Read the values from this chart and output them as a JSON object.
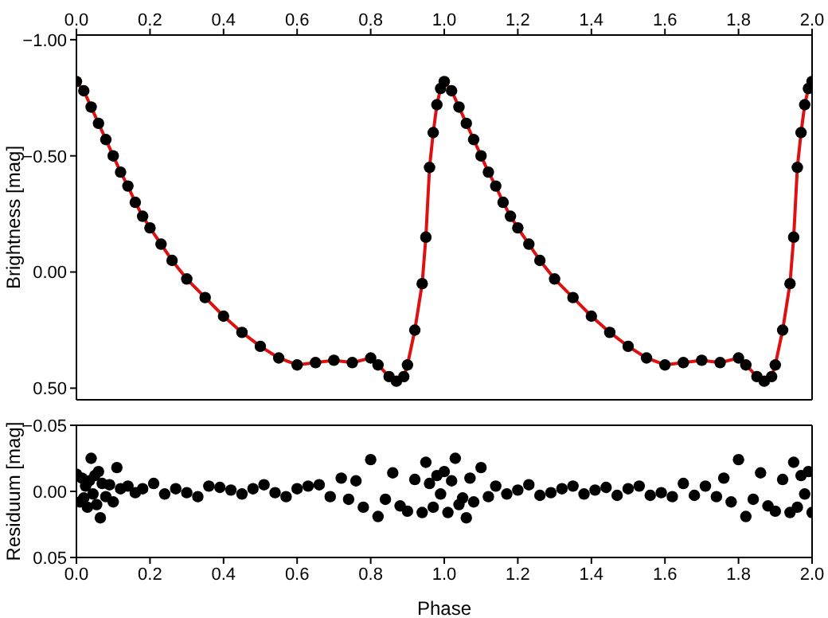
{
  "chart_data": [
    {
      "type": "scatter",
      "ylabel": "Brightness [mag]",
      "xlim": [
        0,
        2
      ],
      "xticks": [
        {
          "value": 0,
          "label": "0.0"
        },
        {
          "value": 0.2,
          "label": "0.2"
        },
        {
          "value": 0.4,
          "label": "0.4"
        },
        {
          "value": 0.6,
          "label": "0.6"
        },
        {
          "value": 0.8,
          "label": "0.8"
        },
        {
          "value": 1,
          "label": "1.0"
        },
        {
          "value": 1.2,
          "label": "1.2"
        },
        {
          "value": 1.4,
          "label": "1.4"
        },
        {
          "value": 1.6,
          "label": "1.6"
        },
        {
          "value": 1.8,
          "label": "1.8"
        },
        {
          "value": 2,
          "label": "2.0"
        }
      ],
      "ylim": [
        0.55,
        -1.02
      ],
      "yticks": [
        {
          "value": -1,
          "label": "−1.00"
        },
        {
          "value": -0.5,
          "label": "−0.50"
        },
        {
          "value": 0,
          "label": "0.00"
        },
        {
          "value": 0.5,
          "label": "0.50"
        }
      ],
      "grid": false,
      "series": [
        {
          "type": "scatter",
          "marker": "circle",
          "color": "#000000",
          "x": [
            0,
            0.02,
            0.04,
            0.06,
            0.08,
            0.1,
            0.12,
            0.14,
            0.16,
            0.18,
            0.2,
            0.23,
            0.26,
            0.3,
            0.35,
            0.4,
            0.45,
            0.5,
            0.55,
            0.6,
            0.65,
            0.7,
            0.75,
            0.8,
            0.82,
            0.85,
            0.87,
            0.89,
            0.9,
            0.92,
            0.94,
            0.95,
            0.96,
            0.97,
            0.98,
            0.99,
            1,
            1.02,
            1.04,
            1.06,
            1.08,
            1.1,
            1.12,
            1.14,
            1.16,
            1.18,
            1.2,
            1.23,
            1.26,
            1.3,
            1.35,
            1.4,
            1.45,
            1.5,
            1.55,
            1.6,
            1.65,
            1.7,
            1.75,
            1.8,
            1.82,
            1.85,
            1.87,
            1.89,
            1.9,
            1.92,
            1.94,
            1.95,
            1.96,
            1.97,
            1.98,
            1.99,
            2
          ],
          "values": [
            -0.82,
            -0.78,
            -0.71,
            -0.64,
            -0.57,
            -0.5,
            -0.43,
            -0.37,
            -0.3,
            -0.24,
            -0.19,
            -0.12,
            -0.05,
            0.03,
            0.11,
            0.19,
            0.26,
            0.32,
            0.37,
            0.4,
            0.39,
            0.38,
            0.39,
            0.37,
            0.4,
            0.45,
            0.47,
            0.45,
            0.4,
            0.25,
            0.05,
            -0.15,
            -0.45,
            -0.6,
            -0.72,
            -0.79,
            -0.82,
            -0.78,
            -0.71,
            -0.64,
            -0.57,
            -0.5,
            -0.43,
            -0.37,
            -0.3,
            -0.24,
            -0.19,
            -0.12,
            -0.05,
            0.03,
            0.11,
            0.19,
            0.26,
            0.32,
            0.37,
            0.4,
            0.39,
            0.38,
            0.39,
            0.37,
            0.4,
            0.45,
            0.47,
            0.45,
            0.4,
            0.25,
            0.05,
            -0.15,
            -0.45,
            -0.6,
            -0.72,
            -0.79,
            -0.82
          ]
        },
        {
          "type": "line",
          "marker": "none",
          "color": "#dd1111",
          "x": [
            0,
            0.02,
            0.04,
            0.06,
            0.08,
            0.1,
            0.12,
            0.14,
            0.16,
            0.18,
            0.2,
            0.23,
            0.26,
            0.3,
            0.35,
            0.4,
            0.45,
            0.5,
            0.55,
            0.6,
            0.65,
            0.7,
            0.75,
            0.8,
            0.82,
            0.85,
            0.87,
            0.89,
            0.9,
            0.92,
            0.94,
            0.95,
            0.96,
            0.97,
            0.98,
            0.99,
            1,
            1.02,
            1.04,
            1.06,
            1.08,
            1.1,
            1.12,
            1.14,
            1.16,
            1.18,
            1.2,
            1.23,
            1.26,
            1.3,
            1.35,
            1.4,
            1.45,
            1.5,
            1.55,
            1.6,
            1.65,
            1.7,
            1.75,
            1.8,
            1.82,
            1.85,
            1.87,
            1.89,
            1.9,
            1.92,
            1.94,
            1.95,
            1.96,
            1.97,
            1.98,
            1.99,
            2
          ],
          "values": [
            -0.82,
            -0.78,
            -0.71,
            -0.64,
            -0.57,
            -0.5,
            -0.43,
            -0.37,
            -0.3,
            -0.24,
            -0.19,
            -0.12,
            -0.05,
            0.03,
            0.11,
            0.19,
            0.26,
            0.32,
            0.37,
            0.4,
            0.39,
            0.38,
            0.39,
            0.37,
            0.4,
            0.45,
            0.47,
            0.45,
            0.4,
            0.25,
            0.05,
            -0.15,
            -0.45,
            -0.6,
            -0.72,
            -0.79,
            -0.82,
            -0.78,
            -0.71,
            -0.64,
            -0.57,
            -0.5,
            -0.43,
            -0.37,
            -0.3,
            -0.24,
            -0.19,
            -0.12,
            -0.05,
            0.03,
            0.11,
            0.19,
            0.26,
            0.32,
            0.37,
            0.4,
            0.39,
            0.38,
            0.39,
            0.37,
            0.4,
            0.45,
            0.47,
            0.45,
            0.4,
            0.25,
            0.05,
            -0.15,
            -0.45,
            -0.6,
            -0.72,
            -0.79,
            -0.82
          ]
        }
      ]
    },
    {
      "type": "scatter",
      "xlabel": "Phase",
      "ylabel": "Residuum [mag]",
      "xlim": [
        0,
        2
      ],
      "xticks": [
        {
          "value": 0,
          "label": "0.0"
        },
        {
          "value": 0.2,
          "label": "0.2"
        },
        {
          "value": 0.4,
          "label": "0.4"
        },
        {
          "value": 0.6,
          "label": "0.6"
        },
        {
          "value": 0.8,
          "label": "0.8"
        },
        {
          "value": 1,
          "label": "1.0"
        },
        {
          "value": 1.2,
          "label": "1.2"
        },
        {
          "value": 1.4,
          "label": "1.4"
        },
        {
          "value": 1.6,
          "label": "1.6"
        },
        {
          "value": 1.8,
          "label": "1.8"
        },
        {
          "value": 2,
          "label": "2.0"
        }
      ],
      "ylim": [
        0.05,
        -0.05
      ],
      "yticks": [
        {
          "value": -0.05,
          "label": "−0.05"
        },
        {
          "value": 0,
          "label": "0.00"
        },
        {
          "value": 0.05,
          "label": "0.05"
        }
      ],
      "grid": false,
      "marker": "circle",
      "series": [
        {
          "type": "scatter",
          "color": "#000000",
          "x": [
            0,
            0.01,
            0.015,
            0.02,
            0.025,
            0.03,
            0.035,
            0.04,
            0.045,
            0.05,
            0.055,
            0.06,
            0.065,
            0.07,
            0.08,
            0.09,
            0.1,
            0.11,
            0.12,
            0.14,
            0.16,
            0.18,
            0.21,
            0.24,
            0.27,
            0.3,
            0.33,
            0.36,
            0.39,
            0.42,
            0.45,
            0.48,
            0.51,
            0.54,
            0.57,
            0.6,
            0.63,
            0.66,
            0.69,
            0.72,
            0.74,
            0.76,
            0.78,
            0.8,
            0.82,
            0.84,
            0.86,
            0.88,
            0.9,
            0.92,
            0.94,
            0.95,
            0.96,
            0.97,
            0.98,
            0.99,
            1,
            1.01,
            1.02,
            1.03,
            1.04,
            1.05,
            1.06,
            1.07,
            1.08,
            1.1,
            1.12,
            1.14,
            1.17,
            1.2,
            1.23,
            1.26,
            1.29,
            1.32,
            1.35,
            1.38,
            1.41,
            1.44,
            1.47,
            1.5,
            1.53,
            1.56,
            1.59,
            1.62,
            1.65,
            1.68,
            1.71,
            1.74,
            1.76,
            1.78,
            1.8,
            1.82,
            1.84,
            1.86,
            1.88,
            1.9,
            1.92,
            1.94,
            1.95,
            1.96,
            1.97,
            1.98,
            1.99,
            2
          ],
          "values": [
            -0.013,
            0.008,
            -0.01,
            0.005,
            -0.004,
            0.012,
            -0.008,
            -0.025,
            0.002,
            -0.012,
            0.01,
            -0.015,
            0.02,
            -0.006,
            0.004,
            -0.005,
            0.008,
            -0.018,
            -0.002,
            -0.004,
            0.001,
            -0.002,
            -0.006,
            0.002,
            -0.002,
            0.001,
            0.004,
            -0.004,
            -0.003,
            -0.001,
            0.002,
            -0.002,
            -0.005,
            0.001,
            0.004,
            -0.002,
            -0.004,
            -0.005,
            0.004,
            -0.01,
            0.006,
            -0.008,
            0.012,
            -0.024,
            0.019,
            0.006,
            -0.014,
            0.011,
            0.015,
            -0.009,
            0.016,
            -0.022,
            -0.006,
            0.012,
            -0.012,
            0.002,
            -0.015,
            0.016,
            -0.008,
            -0.025,
            0.01,
            0.005,
            0.02,
            -0.01,
            0.008,
            -0.018,
            0.004,
            -0.004,
            0.002,
            -0.001,
            -0.005,
            0.003,
            0.001,
            -0.002,
            -0.004,
            0.002,
            -0.001,
            -0.003,
            0.003,
            -0.002,
            -0.004,
            0.003,
            0.001,
            0.004,
            -0.006,
            0.003,
            -0.004,
            0.004,
            -0.01,
            0.008,
            -0.024,
            0.019,
            0.006,
            -0.014,
            0.011,
            0.015,
            -0.009,
            0.016,
            -0.022,
            0.012,
            -0.012,
            0.002,
            -0.015,
            0.016
          ]
        }
      ]
    }
  ]
}
